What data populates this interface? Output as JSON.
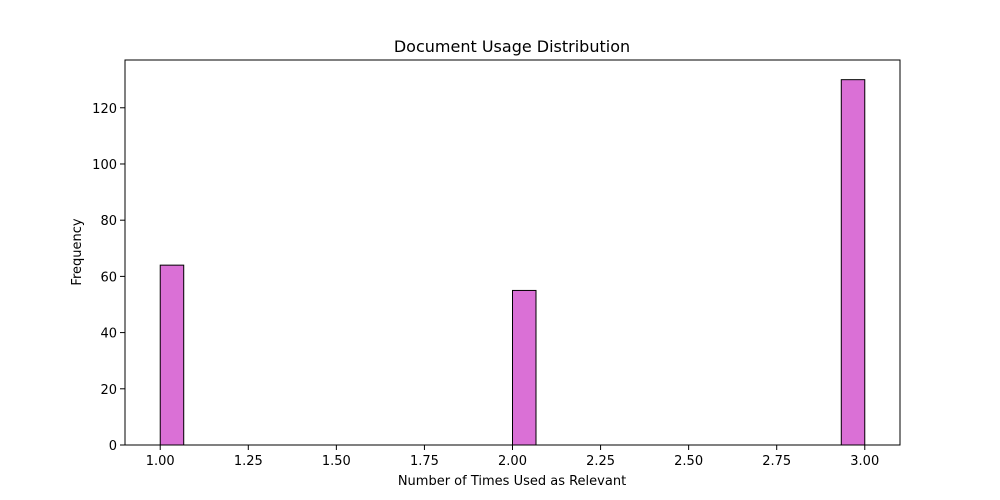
{
  "chart_data": {
    "type": "bar",
    "title": "Document Usage Distribution",
    "xlabel": "Number of Times Used as Relevant",
    "ylabel": "Frequency",
    "xlim": [
      0.9,
      3.1
    ],
    "ylim": [
      0,
      137
    ],
    "x_ticks": [
      1.0,
      1.25,
      1.5,
      1.75,
      2.0,
      2.25,
      2.5,
      2.75,
      3.0
    ],
    "x_tick_labels": [
      "1.00",
      "1.25",
      "1.50",
      "1.75",
      "2.00",
      "2.25",
      "2.50",
      "2.75",
      "3.00"
    ],
    "y_ticks": [
      0,
      20,
      40,
      60,
      80,
      100,
      120
    ],
    "y_tick_labels": [
      "0",
      "20",
      "40",
      "60",
      "80",
      "100",
      "120"
    ],
    "bars": [
      {
        "x_start": 1.0,
        "x_end": 1.0667,
        "value": 64
      },
      {
        "x_start": 2.0,
        "x_end": 2.0667,
        "value": 55
      },
      {
        "x_start": 2.9333,
        "x_end": 3.0,
        "value": 130
      }
    ],
    "bar_color": "#da70d6",
    "edge_color": "#000000",
    "grid": false
  }
}
